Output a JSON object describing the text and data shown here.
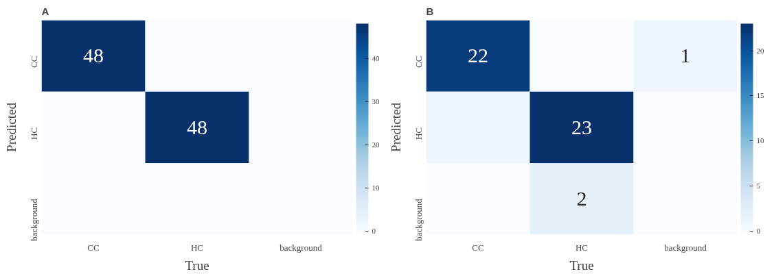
{
  "chart_data": [
    {
      "type": "heatmap",
      "title": "A",
      "xlabel": "True",
      "ylabel": "Predicted",
      "categories": [
        "CC",
        "HC",
        "background"
      ],
      "y_categories": [
        "CC",
        "HC",
        "background"
      ],
      "cells": [
        [
          48,
          0,
          0
        ],
        [
          0,
          48,
          0
        ],
        [
          0,
          0,
          0
        ]
      ],
      "cell_labels": [
        [
          "48",
          null,
          null
        ],
        [
          null,
          "48",
          null
        ],
        [
          null,
          null,
          null
        ]
      ],
      "clim": [
        0,
        48
      ],
      "cticks": [
        0,
        10,
        20,
        30,
        40
      ]
    },
    {
      "type": "heatmap",
      "title": "B",
      "xlabel": "True",
      "ylabel": "Predicted",
      "categories": [
        "CC",
        "HC",
        "background"
      ],
      "y_categories": [
        "CC",
        "HC",
        "background"
      ],
      "cells": [
        [
          22,
          0,
          1
        ],
        [
          1,
          23,
          0
        ],
        [
          0,
          2,
          0
        ]
      ],
      "cell_labels": [
        [
          "22",
          null,
          "1"
        ],
        [
          null,
          "23",
          null
        ],
        [
          null,
          "2",
          null
        ]
      ],
      "clim": [
        0,
        23
      ],
      "cticks": [
        0,
        5,
        10,
        15,
        20
      ]
    }
  ]
}
